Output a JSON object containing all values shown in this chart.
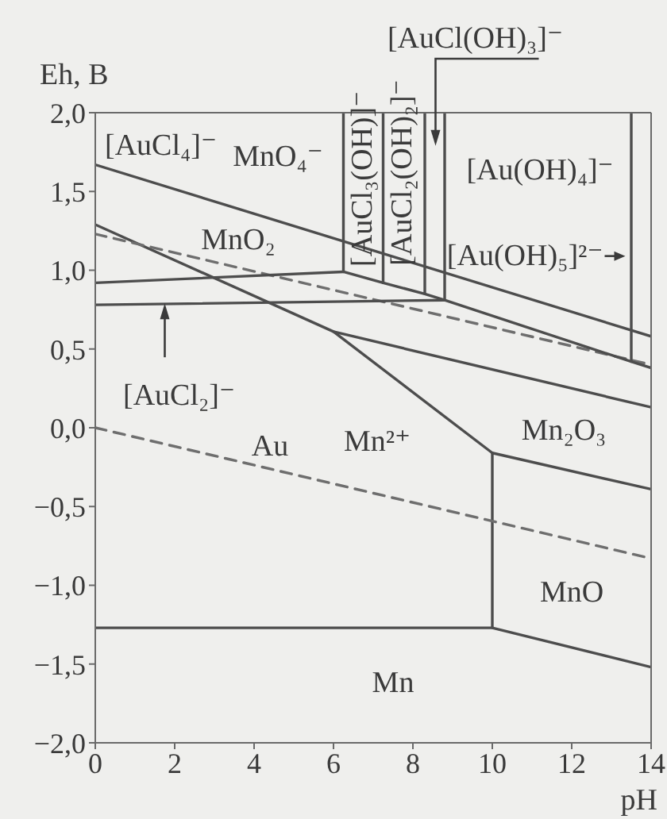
{
  "chart_data": {
    "type": "line",
    "xlabel": "pH",
    "ylabel": "Eh, B",
    "xlim": [
      0,
      14
    ],
    "ylim": [
      -2,
      2
    ],
    "xticks": [
      0,
      2,
      4,
      6,
      8,
      10,
      12,
      14
    ],
    "yticks": [
      {
        "value": 2,
        "label": "2,0"
      },
      {
        "value": 1.5,
        "label": "1,5"
      },
      {
        "value": 1,
        "label": "1,0"
      },
      {
        "value": 0.5,
        "label": "0,5"
      },
      {
        "value": 0,
        "label": "0,0"
      },
      {
        "value": -0.5,
        "label": "−0,5"
      },
      {
        "value": -1,
        "label": "−1,0"
      },
      {
        "value": -1.5,
        "label": "−1,5"
      },
      {
        "value": -2,
        "label": "−2,0"
      }
    ],
    "series": [
      {
        "x": [
          0,
          14
        ],
        "values": [
          1.67,
          0.58
        ],
        "color": "#4d4d4d"
      },
      {
        "x": [
          0,
          6,
          14
        ],
        "values": [
          1.29,
          0.61,
          0.13
        ],
        "color": "#4d4d4d"
      },
      {
        "x": [
          6,
          10,
          14
        ],
        "values": [
          0.61,
          -0.16,
          -0.39
        ],
        "color": "#4d4d4d"
      },
      {
        "x": [
          10,
          10
        ],
        "values": [
          -0.16,
          -1.27
        ],
        "color": "#4d4d4d"
      },
      {
        "x": [
          0,
          10,
          14
        ],
        "values": [
          -1.27,
          -1.27,
          -1.52
        ],
        "color": "#4d4d4d"
      },
      {
        "x": [
          0,
          14
        ],
        "values": [
          1.23,
          0.4
        ],
        "color": "#6e6e6e",
        "line_style": "dashed"
      },
      {
        "x": [
          0,
          14
        ],
        "values": [
          0,
          -0.83
        ],
        "color": "#6e6e6e",
        "line_style": "dashed"
      },
      {
        "x": [
          0,
          6.25,
          7.25,
          8.3,
          8.8
        ],
        "values": [
          0.92,
          0.99,
          0.92,
          0.85,
          0.81
        ],
        "color": "#4d4d4d"
      },
      {
        "x": [
          0,
          8.8,
          13.5,
          14
        ],
        "values": [
          0.78,
          0.81,
          0.42,
          0.38
        ],
        "color": "#4d4d4d"
      },
      {
        "x": [
          6.25,
          6.25
        ],
        "values": [
          2,
          0.99
        ],
        "color": "#4d4d4d"
      },
      {
        "x": [
          7.25,
          7.25
        ],
        "values": [
          2,
          0.92
        ],
        "color": "#4d4d4d"
      },
      {
        "x": [
          8.3,
          8.3
        ],
        "values": [
          2,
          0.85
        ],
        "color": "#4d4d4d"
      },
      {
        "x": [
          8.8,
          8.8
        ],
        "values": [
          2,
          0.81
        ],
        "color": "#4d4d4d"
      },
      {
        "x": [
          13.5,
          13.5
        ],
        "values": [
          2,
          0.42
        ],
        "color": "#4d4d4d"
      }
    ],
    "annotations": [
      "[AuCl₄]⁻",
      "MnO₄⁻",
      "MnO₂",
      "[AuCl₃(OH)]⁻",
      "[AuCl₂(OH)₂]⁻",
      "[AuCl(OH)₃]⁻",
      "[Au(OH)₄]⁻",
      {
        "text": "[Au(OH)₅]²⁻",
        "x": 13.35,
        "y": 1.09
      },
      {
        "text": "[AuCl₂]⁻",
        "x": 1.75,
        "y": 0.79
      },
      "Au",
      "Mn²⁺",
      "Mn₂O₃",
      "MnO",
      "Mn"
    ]
  }
}
